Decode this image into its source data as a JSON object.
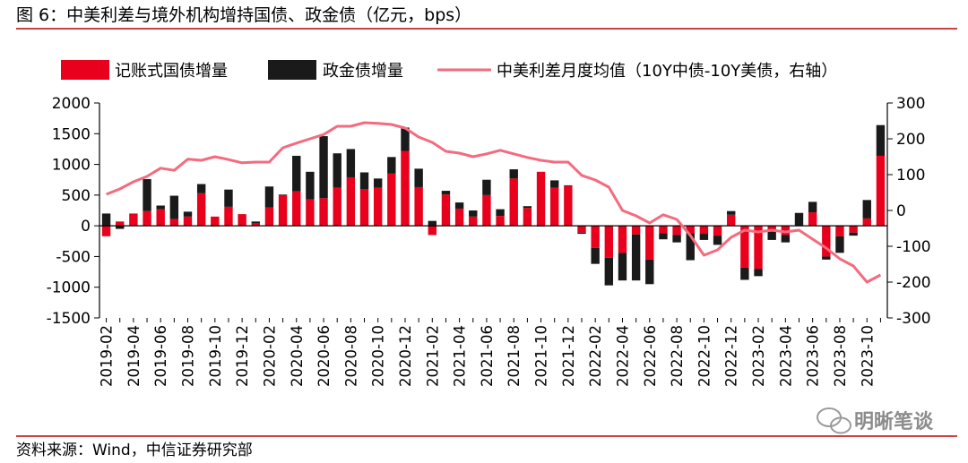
{
  "title": "图 6：中美利差与境外机构增持国债、政金债（亿元，bps）",
  "source": "资料来源：Wind，中信证券研究部",
  "watermark": "明晰笔谈",
  "colors": {
    "gov_bond": "#e8001c",
    "policy_bond": "#1a1a1a",
    "spread_line": "#f36b7f",
    "rule": "#c00000"
  },
  "chart_data": {
    "type": "bar",
    "stacked": true,
    "legend_position": "top",
    "grid": false,
    "x": [
      "2019-02",
      "2019-03",
      "2019-04",
      "2019-05",
      "2019-06",
      "2019-07",
      "2019-08",
      "2019-09",
      "2019-10",
      "2019-11",
      "2019-12",
      "2020-01",
      "2020-02",
      "2020-03",
      "2020-04",
      "2020-05",
      "2020-06",
      "2020-07",
      "2020-08",
      "2020-09",
      "2020-10",
      "2020-11",
      "2020-12",
      "2021-01",
      "2021-02",
      "2021-03",
      "2021-04",
      "2021-05",
      "2021-06",
      "2021-07",
      "2021-08",
      "2021-09",
      "2021-10",
      "2021-11",
      "2021-12",
      "2022-01",
      "2022-02",
      "2022-03",
      "2022-04",
      "2022-05",
      "2022-06",
      "2022-07",
      "2022-08",
      "2022-09",
      "2022-10",
      "2022-11",
      "2022-12",
      "2023-01",
      "2023-02",
      "2023-03",
      "2023-04",
      "2023-05",
      "2023-06",
      "2023-07",
      "2023-08",
      "2023-09",
      "2023-10",
      "2023-11"
    ],
    "x_tick_labels": [
      "2019-02",
      "2019-04",
      "2019-06",
      "2019-08",
      "2019-10",
      "2019-12",
      "2020-02",
      "2020-04",
      "2020-06",
      "2020-08",
      "2020-10",
      "2020-12",
      "2021-02",
      "2021-04",
      "2021-06",
      "2021-08",
      "2021-10",
      "2021-12",
      "2022-02",
      "2022-04",
      "2022-06",
      "2022-08",
      "2022-10",
      "2022-12",
      "2023-02",
      "2023-04",
      "2023-06",
      "2023-08",
      "2023-10"
    ],
    "y_left": {
      "ylim": [
        -1500,
        2000
      ],
      "ticks": [
        2000,
        1500,
        1000,
        500,
        0,
        -500,
        -1000,
        -1500
      ]
    },
    "y_right": {
      "ylim": [
        -300,
        300
      ],
      "ticks": [
        300,
        200,
        100,
        0,
        -100,
        -200,
        -300
      ]
    },
    "series": [
      {
        "name": "记账式国债增量",
        "type": "bar",
        "axis": "left",
        "values": [
          -170,
          70,
          200,
          240,
          270,
          110,
          150,
          530,
          150,
          310,
          190,
          40,
          300,
          500,
          560,
          430,
          450,
          620,
          790,
          600,
          620,
          850,
          1220,
          630,
          -150,
          510,
          280,
          150,
          500,
          160,
          770,
          290,
          880,
          620,
          650,
          -110,
          -360,
          -520,
          -440,
          -140,
          -550,
          -120,
          -150,
          -120,
          -130,
          -160,
          180,
          -680,
          -700,
          -100,
          -150,
          0,
          220,
          -500,
          -170,
          -110,
          120,
          1140
        ]
      },
      {
        "name": "政金债增量",
        "type": "bar",
        "axis": "left",
        "values": [
          200,
          -50,
          0,
          520,
          60,
          380,
          80,
          150,
          -10,
          280,
          0,
          30,
          340,
          10,
          580,
          450,
          1010,
          560,
          460,
          270,
          150,
          270,
          380,
          300,
          80,
          60,
          100,
          100,
          250,
          110,
          150,
          30,
          -10,
          120,
          10,
          -20,
          -260,
          -450,
          -450,
          -750,
          -400,
          -100,
          -120,
          -440,
          -100,
          -150,
          60,
          -200,
          -120,
          -130,
          -120,
          210,
          170,
          -50,
          -270,
          -50,
          300,
          500
        ]
      },
      {
        "name": "中美利差月度均值（10Y中债-10Y美债，右轴）",
        "type": "line",
        "axis": "right",
        "values": [
          45,
          60,
          80,
          95,
          118,
          112,
          143,
          140,
          150,
          142,
          133,
          135,
          135,
          175,
          188,
          200,
          212,
          235,
          235,
          245,
          243,
          240,
          230,
          205,
          190,
          165,
          160,
          150,
          158,
          168,
          158,
          148,
          140,
          135,
          135,
          98,
          85,
          65,
          0,
          -15,
          -35,
          -12,
          -25,
          -70,
          -125,
          -110,
          -75,
          -55,
          -60,
          -55,
          -60,
          -55,
          -80,
          -105,
          -135,
          -155,
          -200,
          -180
        ]
      }
    ]
  }
}
